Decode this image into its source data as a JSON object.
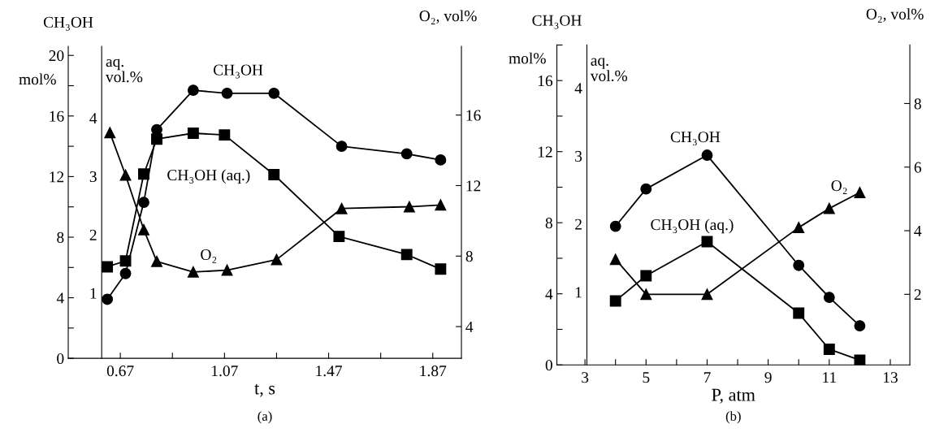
{
  "chart_data": [
    {
      "type": "line",
      "title": "(a)",
      "xlabel": "t, s",
      "ylabel": "CH₃OH",
      "y2label": "aq.\nvol.%",
      "y3label": "O₂, vol%",
      "xlim": [
        0.47,
        1.98
      ],
      "xticks": [
        0.67,
        {
          "value": 0.87,
          "label": null
        },
        1.07,
        {
          "value": 1.27,
          "label": null
        },
        1.47,
        {
          "value": 1.67,
          "label": null
        },
        1.87
      ],
      "ylim": [
        0,
        20.6
      ],
      "yticks": [
        0,
        {
          "value": 2,
          "label": null
        },
        4,
        {
          "value": 6,
          "label": null
        },
        8,
        {
          "value": 10,
          "label": null
        },
        12,
        {
          "value": 14,
          "label": null
        },
        16,
        {
          "value": 18,
          "label": null
        },
        20
      ],
      "y2lim": [
        -0.12,
        5.23
      ],
      "y2ticks": [
        1,
        2,
        3,
        4
      ],
      "y3lim": [
        2.2,
        19.9
      ],
      "y3ticks": [
        4,
        8,
        12,
        16
      ],
      "line_style": "solid",
      "series": [
        {
          "color": "#000000",
          "marker": "circle",
          "axis": "y",
          "x": [
            0.62,
            0.69,
            0.76,
            0.81,
            0.95,
            1.08,
            1.26,
            1.52,
            1.77,
            1.9
          ],
          "values": [
            3.9,
            5.6,
            10.3,
            15.1,
            17.7,
            17.5,
            17.5,
            14.0,
            13.5,
            13.1
          ]
        },
        {
          "color": "#000000",
          "marker": "square",
          "axis": "y2",
          "x": [
            0.62,
            0.69,
            0.76,
            0.81,
            0.95,
            1.07,
            1.26,
            1.51,
            1.77,
            1.9
          ],
          "values": [
            1.45,
            1.55,
            3.04,
            3.64,
            3.74,
            3.71,
            3.03,
            1.97,
            1.66,
            1.41
          ]
        },
        {
          "color": "#000000",
          "marker": "triangle",
          "axis": "y3",
          "x": [
            0.63,
            0.69,
            0.76,
            0.81,
            0.95,
            1.08,
            1.27,
            1.52,
            1.78,
            1.9
          ],
          "values": [
            15.0,
            12.6,
            9.5,
            7.7,
            7.1,
            7.2,
            7.8,
            10.7,
            10.8,
            10.9
          ]
        }
      ],
      "annotations": [
        "mol%",
        "CH₃OH",
        "CH₃OH (aq.)",
        "O₂"
      ]
    },
    {
      "type": "line",
      "title": "(b)",
      "xlabel": "P, atm",
      "ylabel": "CH₃OH",
      "y2label": "aq.\nvol.%",
      "y3label": "O₂, vol%",
      "xlim": [
        2.08,
        13.64
      ],
      "xticks": [
        3,
        {
          "value": 4,
          "label": null
        },
        5,
        {
          "value": 6,
          "label": null
        },
        7,
        {
          "value": 8,
          "label": null
        },
        9,
        {
          "value": 10,
          "label": null
        },
        11,
        {
          "value": 12,
          "label": null
        },
        13
      ],
      "ylim": [
        0,
        18
      ],
      "yticks": [
        0,
        {
          "value": 2,
          "label": null
        },
        4,
        {
          "value": 6,
          "label": null
        },
        8,
        {
          "value": 10,
          "label": null
        },
        12,
        {
          "value": 14,
          "label": null
        },
        16,
        {
          "value": 18,
          "label": null
        }
      ],
      "y2lim": [
        -0.07,
        4.63
      ],
      "y2ticks": [
        1,
        2,
        3,
        4
      ],
      "y3lim": [
        -0.22,
        9.84
      ],
      "y3ticks": [
        2,
        4,
        6,
        8
      ],
      "line_style": "solid",
      "series": [
        {
          "color": "#000000",
          "marker": "circle",
          "axis": "y",
          "x": [
            4,
            5,
            7,
            10,
            11,
            12
          ],
          "values": [
            7.8,
            9.9,
            11.8,
            5.6,
            3.8,
            2.2
          ]
        },
        {
          "color": "#000000",
          "marker": "square",
          "axis": "y2",
          "x": [
            4,
            5,
            7,
            10,
            11,
            12
          ],
          "values": [
            0.87,
            1.24,
            1.74,
            0.69,
            0.16,
            0.0
          ]
        },
        {
          "color": "#000000",
          "marker": "triangle",
          "axis": "y3",
          "x": [
            4,
            5,
            7,
            10,
            11,
            12
          ],
          "values": [
            3.1,
            2.0,
            2.0,
            4.1,
            4.7,
            5.2
          ]
        }
      ],
      "annotations": [
        "mol%",
        "CH₃OH",
        "CH₃OH (aq.)",
        "O₂"
      ]
    }
  ]
}
